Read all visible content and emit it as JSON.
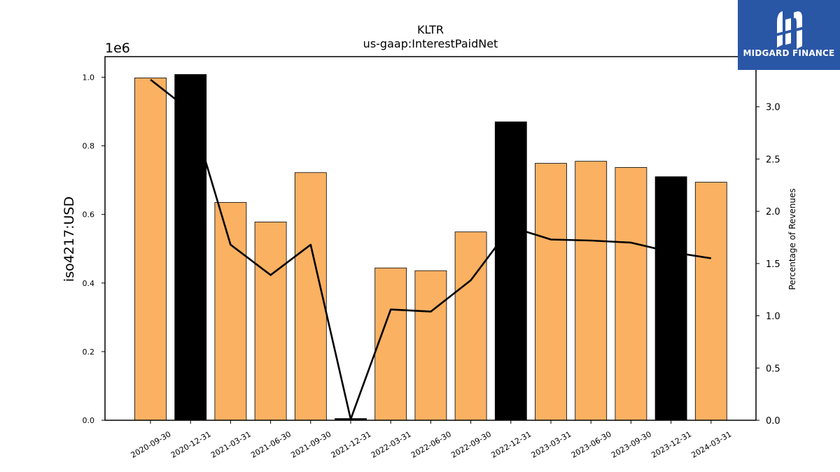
{
  "chart_data": {
    "type": "bar",
    "title": "KLTR",
    "subtitle": "us-gaap:InterestPaidNet",
    "ylabel": "iso4217:USD",
    "y2label": "Percentage of Revenues",
    "y_offset_label": "1e6",
    "ylim": [
      0,
      1060000
    ],
    "y2lim": [
      0,
      3.48
    ],
    "yticks": [
      0.0,
      0.2,
      0.4,
      0.6,
      0.8,
      1.0
    ],
    "y2ticks": [
      0.0,
      0.5,
      1.0,
      1.5,
      2.0,
      2.5,
      3.0
    ],
    "categories": [
      "2020-09-30",
      "2020-12-31",
      "2021-03-31",
      "2021-06-30",
      "2021-09-30",
      "2021-12-31",
      "2022-03-31",
      "2022-06-30",
      "2022-09-30",
      "2022-12-31",
      "2023-03-31",
      "2023-06-30",
      "2023-09-30",
      "2023-12-31",
      "2024-03-31"
    ],
    "values": [
      998000,
      1008000,
      635000,
      578000,
      722000,
      5000,
      444000,
      436000,
      549000,
      870000,
      749000,
      755000,
      737000,
      710000,
      694000
    ],
    "bar_colors": [
      "#fbb162",
      "#000000",
      "#fbb162",
      "#fbb162",
      "#fbb162",
      "#000000",
      "#fbb162",
      "#fbb162",
      "#fbb162",
      "#000000",
      "#fbb162",
      "#fbb162",
      "#fbb162",
      "#000000",
      "#fbb162"
    ],
    "line_values": [
      3.26,
      2.96,
      1.68,
      1.39,
      1.68,
      0.01,
      1.06,
      1.04,
      1.34,
      1.85,
      1.73,
      1.72,
      1.7,
      1.61,
      1.55
    ],
    "line_color": "#000000",
    "grid": false
  },
  "logo": {
    "text": "MIDGARD FINANCE",
    "color": "#2a56a6"
  }
}
